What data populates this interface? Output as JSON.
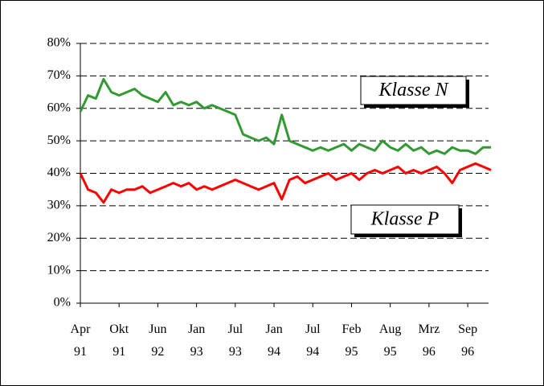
{
  "chart_data": {
    "type": "line",
    "categories": [
      "Apr 91",
      null,
      null,
      null,
      null,
      "Okt 91",
      null,
      null,
      null,
      null,
      "Jun 92",
      null,
      null,
      null,
      null,
      "Jan 93",
      null,
      null,
      null,
      null,
      "Jul 93",
      null,
      null,
      null,
      null,
      "Jan 94",
      null,
      null,
      null,
      null,
      "Jul 94",
      null,
      null,
      null,
      null,
      "Feb 95",
      null,
      null,
      null,
      null,
      "Aug 95",
      null,
      null,
      null,
      null,
      "Mrz 96",
      null,
      null,
      null,
      null,
      "Sep 96",
      null,
      null,
      null
    ],
    "series": [
      {
        "name": "Klasse N",
        "color": "#339933",
        "values": [
          59,
          64,
          63,
          69,
          65,
          64,
          65,
          66,
          64,
          63,
          62,
          65,
          61,
          62,
          61,
          62,
          60,
          61,
          60,
          59,
          58,
          52,
          51,
          50,
          51,
          49,
          58,
          50,
          49,
          48,
          47,
          48,
          47,
          48,
          49,
          47,
          49,
          48,
          47,
          50,
          48,
          47,
          49,
          47,
          48,
          46,
          47,
          46,
          48,
          47,
          47,
          46,
          48,
          48
        ]
      },
      {
        "name": "Klasse P",
        "color": "#ff0000",
        "values": [
          40,
          35,
          34,
          31,
          35,
          34,
          35,
          35,
          36,
          34,
          35,
          36,
          37,
          36,
          37,
          35,
          36,
          35,
          36,
          37,
          38,
          37,
          36,
          35,
          36,
          37,
          32,
          38,
          39,
          37,
          38,
          39,
          40,
          38,
          39,
          40,
          38,
          40,
          41,
          40,
          41,
          42,
          40,
          41,
          40,
          41,
          42,
          40,
          37,
          41,
          42,
          43,
          42,
          41
        ]
      }
    ],
    "ylim": [
      0,
      80
    ],
    "yticks": [
      {
        "value": 0,
        "label": "0%"
      },
      {
        "value": 10,
        "label": "10%"
      },
      {
        "value": 20,
        "label": "20%"
      },
      {
        "value": 30,
        "label": "30%"
      },
      {
        "value": 40,
        "label": "40%"
      },
      {
        "value": 50,
        "label": "50%"
      },
      {
        "value": 60,
        "label": "60%"
      },
      {
        "value": 70,
        "label": "70%"
      },
      {
        "value": 80,
        "label": "80%"
      }
    ],
    "grid": true
  }
}
